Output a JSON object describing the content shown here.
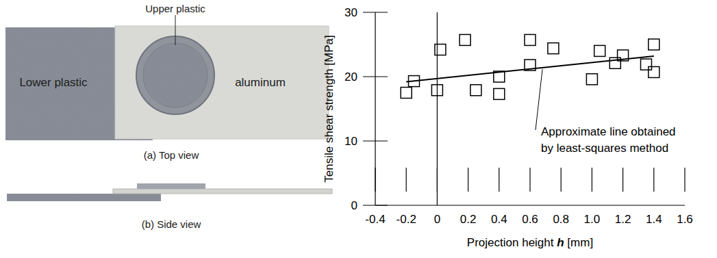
{
  "chart_data": {
    "type": "scatter",
    "xlabel": "Projection height h [mm]",
    "ylabel": "Tensile shear strength [MPa]",
    "annotation": [
      "Approximate line obtained",
      "by least-squares method"
    ],
    "xlim": [
      -0.4,
      1.6
    ],
    "xticks": [
      -0.4,
      -0.2,
      0,
      0.2,
      0.4,
      0.6,
      0.8,
      {
        "value": 1,
        "label": "1.0"
      },
      1.2,
      1.4,
      1.6
    ],
    "ylim": [
      0,
      30
    ],
    "yticks": [
      0,
      10,
      20,
      30
    ],
    "grid": false,
    "series": [
      {
        "type": "scatter",
        "marker": "square",
        "color": "#000000",
        "x": [
          -0.2,
          -0.15,
          0,
          0.02,
          0.18,
          0.25,
          0.4,
          0.4,
          0.6,
          0.6,
          0.75,
          1.0,
          1.05,
          1.15,
          1.2,
          1.35,
          1.4,
          1.4
        ],
        "values": [
          17.5,
          19.3,
          17.9,
          24.2,
          25.7,
          17.9,
          17.3,
          20.0,
          25.7,
          21.8,
          24.4,
          19.6,
          24.0,
          22.1,
          23.3,
          21.9,
          20.7,
          25.0
        ]
      },
      {
        "type": "line",
        "line_style": "solid",
        "color": "#000000",
        "x": [
          -0.2,
          1.4
        ],
        "values": [
          19.2,
          23.2
        ]
      }
    ]
  },
  "photo": {
    "top_view": {
      "labels": [
        "Upper plastic",
        "Lower plastic",
        "aluminum"
      ],
      "caption": "(a) Top view"
    },
    "side_view": {
      "caption": "(b) Side view"
    }
  }
}
